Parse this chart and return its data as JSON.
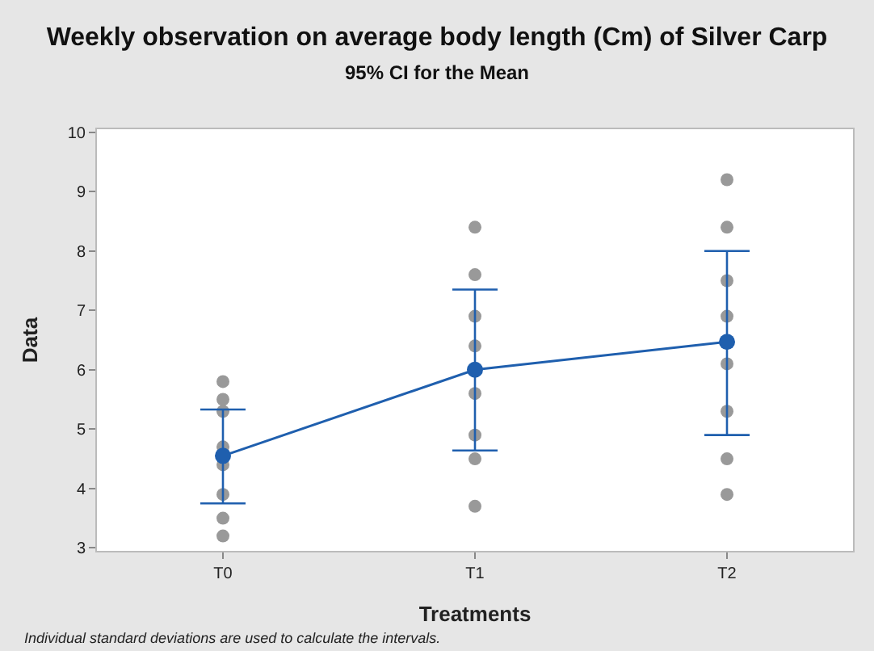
{
  "chart_data": {
    "type": "line",
    "title": "Weekly observation on average body length (Cm) of Silver Carp",
    "subtitle": "95% CI for the Mean",
    "xlabel": "Treatments",
    "ylabel": "Data",
    "categories": [
      "T0",
      "T1",
      "T2"
    ],
    "series": [
      {
        "type": "scatter",
        "color": "#999999",
        "x": [
          "T0",
          "T0",
          "T0",
          "T0",
          "T0",
          "T0",
          "T0",
          "T0",
          "T1",
          "T1",
          "T1",
          "T1",
          "T1",
          "T1",
          "T1",
          "T1",
          "T2",
          "T2",
          "T2",
          "T2",
          "T2",
          "T2",
          "T2",
          "T2"
        ],
        "values": [
          5.8,
          5.5,
          5.3,
          4.7,
          4.4,
          3.9,
          3.5,
          3.2,
          8.4,
          7.6,
          6.9,
          6.4,
          5.6,
          4.9,
          4.5,
          3.7,
          9.2,
          8.4,
          7.5,
          6.9,
          6.1,
          5.3,
          4.5,
          3.9
        ]
      },
      {
        "color": "#1f5fae",
        "values": [
          4.55,
          6.0,
          6.47
        ],
        "errors": [
          [
            3.75,
            5.33
          ],
          [
            4.64,
            7.35
          ],
          [
            4.9,
            8.0
          ]
        ]
      }
    ],
    "ylim": [
      2.95,
      10.05
    ],
    "yticks": [
      3,
      4,
      5,
      6,
      7,
      8,
      9,
      10
    ],
    "marker": "circle",
    "annotations": [
      "Individual standard deviations are used to calculate the intervals."
    ]
  }
}
